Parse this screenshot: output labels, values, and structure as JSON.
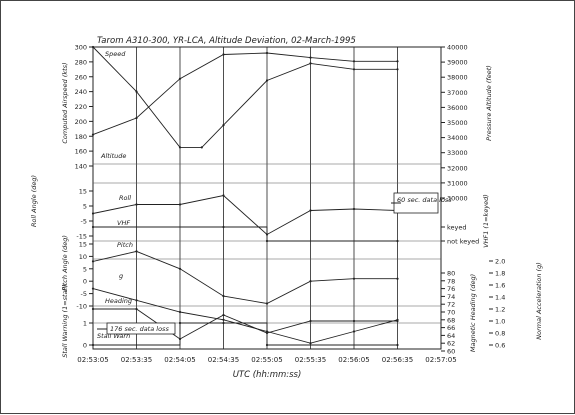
{
  "chart_data": {
    "type": "line",
    "title": "Tarom A310-300, YR-LCA, Altitude Deviation, 02-March-1995",
    "xlabel": "UTC (hh:mm:ss)",
    "x_ticks": [
      "02:53:05",
      "02:53:35",
      "02:54:05",
      "02:54:35",
      "02:55:05",
      "02:55:35",
      "02:56:05",
      "02:56:35",
      "02:57:05"
    ],
    "left_axes": [
      {
        "label": "Computed Airspeed (kts)",
        "ticks": [
          "300",
          "280",
          "260",
          "240",
          "220",
          "200",
          "180",
          "160",
          "140"
        ]
      },
      {
        "label": "Roll Angle (deg)",
        "ticks": [
          "15",
          "5",
          "-5",
          "-15"
        ]
      },
      {
        "label": "Pitch Angle (deg)",
        "ticks": [
          "15",
          "10",
          "5",
          "0",
          "-5",
          "-10"
        ]
      },
      {
        "label": "Stall Warning (1=stall)",
        "ticks": [
          "1",
          "0"
        ]
      }
    ],
    "right_axes": [
      {
        "label": "Pressure Altitude (feet)",
        "ticks": [
          "40000",
          "39000",
          "38000",
          "37000",
          "36000",
          "35000",
          "34000",
          "33000",
          "32000",
          "31000",
          "30000"
        ]
      },
      {
        "label": "VHF1 (1=keyed)",
        "ticks": [
          "keyed",
          "not keyed"
        ]
      },
      {
        "label": "Magnetic Heading (deg)",
        "ticks": [
          "80",
          "78",
          "76",
          "74",
          "72",
          "70",
          "68",
          "66",
          "64",
          "62",
          "60"
        ]
      },
      {
        "label": "Normal Acceleration (g)",
        "ticks": [
          "2.0",
          "1.8",
          "1.6",
          "1.4",
          "1.2",
          "1.0",
          "0.8",
          "0.6"
        ]
      }
    ],
    "series": [
      {
        "name": "Speed",
        "x": [
          "02:53:05",
          "02:53:35",
          "02:54:05",
          "02:54:20",
          "02:54:35",
          "02:55:05",
          "02:55:35",
          "02:56:05",
          "02:56:35"
        ],
        "values": [
          300,
          240,
          165,
          165,
          195,
          255,
          278,
          270,
          270
        ]
      },
      {
        "name": "Altitude",
        "x": [
          "02:53:05",
          "02:53:35",
          "02:54:05",
          "02:54:35",
          "02:55:05",
          "02:55:35",
          "02:56:05",
          "02:56:35"
        ],
        "values": [
          34200,
          35300,
          37900,
          39500,
          39600,
          39300,
          39050,
          39050
        ]
      },
      {
        "name": "Roll",
        "x": [
          "02:53:05",
          "02:53:35",
          "02:54:05",
          "02:54:35",
          "02:55:05",
          "02:55:35",
          "02:56:05",
          "02:56:35"
        ],
        "values": [
          0,
          6,
          6,
          12,
          -14,
          2,
          3,
          2
        ]
      },
      {
        "name": "VHF",
        "x": [
          "02:53:05",
          "02:54:35",
          "02:55:05",
          "02:56:35"
        ],
        "values": [
          1,
          1,
          0,
          0
        ]
      },
      {
        "name": "Pitch",
        "x": [
          "02:53:05",
          "02:53:35",
          "02:54:05",
          "02:54:35",
          "02:55:05",
          "02:55:35",
          "02:56:05",
          "02:56:35"
        ],
        "values": [
          8,
          12,
          5,
          -6,
          -9,
          0,
          1,
          1
        ]
      },
      {
        "name": "g",
        "x": [
          "02:53:05",
          "02:53:35",
          "02:54:05",
          "02:54:35",
          "02:55:05",
          "02:55:35",
          "02:56:05",
          "02:56:35"
        ],
        "values": [
          1.2,
          1.2,
          0.7,
          1.1,
          0.8,
          1.0,
          1.0,
          1.0
        ]
      },
      {
        "name": "Heading",
        "x": [
          "02:53:05",
          "02:53:35",
          "02:54:05",
          "02:54:35",
          "02:55:05",
          "02:55:35",
          "02:56:05",
          "02:56:35"
        ],
        "values": [
          76,
          73,
          70,
          68,
          65,
          62,
          65,
          68
        ]
      },
      {
        "name": "Stall Warn",
        "x": [
          "02:53:05",
          "02:54:05",
          "02:54:35",
          "02:55:05",
          "02:56:35"
        ],
        "values": [
          0,
          1,
          1,
          0,
          0
        ]
      }
    ],
    "annotations": [
      "60 sec. data loss",
      "176 sec. data loss"
    ]
  }
}
